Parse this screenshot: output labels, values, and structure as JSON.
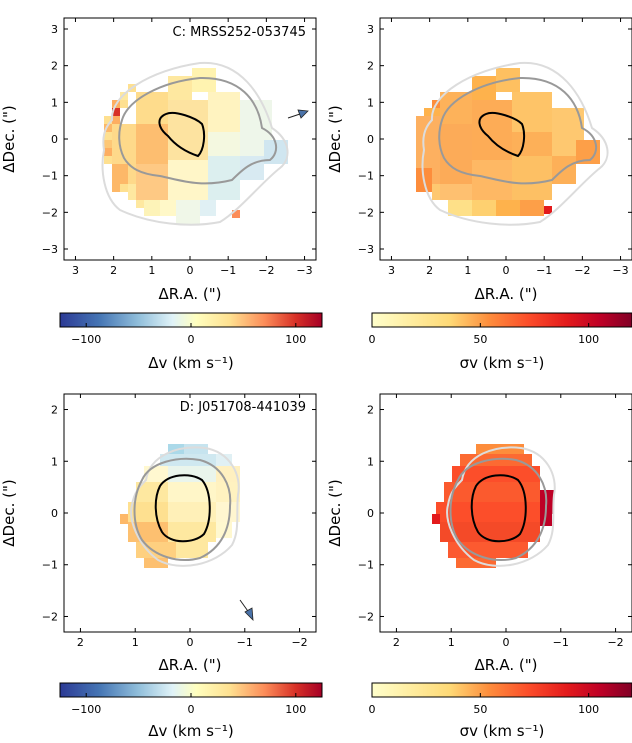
{
  "panels": [
    {
      "id": "C_v",
      "title": "C: MRSS252-053745",
      "xlabel": "ΔR.A. (\")",
      "ylabel": "ΔDec. (\")",
      "xticks": [
        "3",
        "2",
        "1",
        "0",
        "−1",
        "−2",
        "−3"
      ],
      "yticks": [
        "3",
        "2",
        "1",
        "0",
        "−1",
        "−2",
        "−3"
      ]
    },
    {
      "id": "C_sigma",
      "title": "",
      "xlabel": "ΔR.A. (\")",
      "ylabel": "ΔDec. (\")",
      "xticks": [
        "3",
        "2",
        "1",
        "0",
        "−1",
        "−2",
        "−3"
      ],
      "yticks": [
        "3",
        "2",
        "1",
        "0",
        "−1",
        "−2",
        "−3"
      ]
    },
    {
      "id": "D_v",
      "title": "D: J051708-441039",
      "xlabel": "ΔR.A. (\")",
      "ylabel": "ΔDec. (\")",
      "xticks": [
        "2",
        "1",
        "0",
        "−1",
        "−2"
      ],
      "yticks": [
        "2",
        "1",
        "0",
        "−1",
        "−2"
      ]
    },
    {
      "id": "D_sigma",
      "title": "",
      "xlabel": "ΔR.A. (\")",
      "ylabel": "ΔDec. (\")",
      "xticks": [
        "2",
        "1",
        "0",
        "−1",
        "−2"
      ],
      "yticks": [
        "2",
        "1",
        "0",
        "−1",
        "−2"
      ]
    }
  ],
  "colorbars": [
    {
      "id": "cb_v_top",
      "ticks": [
        "−100",
        "0",
        "100"
      ],
      "label": "Δv (km s⁻¹)",
      "colormap": "diverging"
    },
    {
      "id": "cb_s_top",
      "ticks": [
        "0",
        "50",
        "100"
      ],
      "label": "σv (km s⁻¹)",
      "colormap": "sequential"
    },
    {
      "id": "cb_v_bot",
      "ticks": [
        "−100",
        "0",
        "100"
      ],
      "label": "Δv (km s⁻¹)",
      "colormap": "diverging"
    },
    {
      "id": "cb_s_bot",
      "ticks": [
        "0",
        "50",
        "100"
      ],
      "label": "σv (km s⁻¹)",
      "colormap": "sequential"
    }
  ],
  "colors": {
    "diverging": [
      "#2c3a95",
      "#4575b4",
      "#91bfdb",
      "#e0f3f8",
      "#ffffbf",
      "#fee090",
      "#fc8d59",
      "#d73027",
      "#a50026"
    ],
    "sequential": [
      "#ffffcc",
      "#ffeda0",
      "#fed976",
      "#feb24c",
      "#fd8d3c",
      "#fc4e2a",
      "#e31a1c",
      "#bd0026",
      "#800026"
    ],
    "contour_black": "#000000",
    "contour_grey": "#999999",
    "contour_light": "#d9d9d9",
    "arrow": "#4a72a8"
  }
}
